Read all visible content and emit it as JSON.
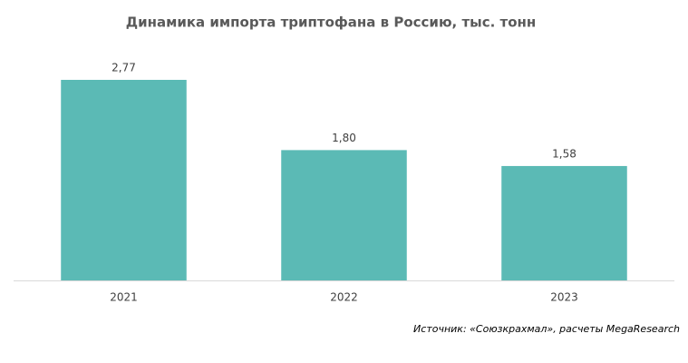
{
  "chart_data": {
    "type": "bar",
    "title": "Динамика импорта триптофана в Россию, тыс. тонн",
    "categories": [
      "2021",
      "2022",
      "2023"
    ],
    "values": [
      2.77,
      1.8,
      1.58
    ],
    "value_labels": [
      "2,77",
      "1,80",
      "1,58"
    ],
    "color": "#5bbab5",
    "source": "Источник: «Союзкрахмал», расчеты MegaResearch"
  }
}
